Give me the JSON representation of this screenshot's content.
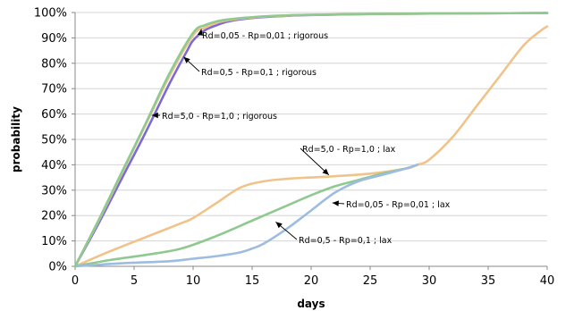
{
  "chart_data": {
    "type": "line",
    "xlabel": "days",
    "ylabel": "probability",
    "xlim": [
      0,
      40
    ],
    "ylim": [
      0,
      100
    ],
    "x_ticks": [
      "0",
      "5",
      "10",
      "15",
      "20",
      "25",
      "30",
      "35",
      "40"
    ],
    "y_ticks": [
      "0%",
      "10%",
      "20%",
      "30%",
      "40%",
      "50%",
      "60%",
      "70%",
      "80%",
      "90%",
      "100%"
    ],
    "grid": "horizontal",
    "legend": "none",
    "series": [
      {
        "name": "Rd=5,0 - Rp=1,0 ; lax",
        "color": "#f0c38a",
        "x": [
          0,
          3,
          6,
          9,
          10,
          12,
          14,
          16,
          18,
          20,
          22,
          25,
          28,
          29,
          30,
          32,
          34,
          36,
          38,
          39.5,
          40
        ],
        "y": [
          0,
          6,
          11.5,
          17,
          19,
          25,
          31,
          33.5,
          34.5,
          35,
          35.5,
          36.5,
          38.5,
          40,
          42,
          51,
          63,
          75,
          87,
          93,
          94.5
        ]
      },
      {
        "name": "Rd=0,05 - Rp=0,01 ; lax",
        "color": "#8fc98f",
        "x": [
          0,
          3,
          6,
          9,
          12,
          15,
          18,
          20,
          22,
          24,
          26,
          28,
          29
        ],
        "y": [
          0,
          2.5,
          4.5,
          7,
          12,
          18,
          24,
          28,
          31.5,
          34,
          36.5,
          38.5,
          40
        ]
      },
      {
        "name": "Rd=0,5 - Rp=0,1 ; lax",
        "color": "#9cbde0",
        "x": [
          0,
          4,
          8,
          10,
          12,
          14,
          15,
          16,
          18,
          20,
          22,
          24,
          26,
          28,
          29
        ],
        "y": [
          0,
          1.2,
          2,
          3,
          4,
          5.5,
          7,
          9,
          15,
          22,
          29,
          33.5,
          36,
          38.5,
          40
        ]
      },
      {
        "name": "Rd=5,0 - Rp=1,0 ; rigorous",
        "color": "#7b6bd6",
        "x": [
          0,
          2,
          4,
          6,
          8,
          9.5,
          10,
          11,
          12,
          13,
          14,
          16,
          18,
          20,
          25,
          30,
          35,
          40
        ],
        "y": [
          0,
          17,
          35,
          53,
          72,
          85,
          89,
          93,
          95,
          96.5,
          97.3,
          98.2,
          98.7,
          99,
          99.4,
          99.6,
          99.7,
          99.8
        ]
      },
      {
        "name": "Rd=0,5 - Rp=0,1 ; rigorous",
        "color": "#f0c38a",
        "x": [
          0,
          2,
          4,
          6,
          8,
          10,
          11,
          12,
          13,
          14,
          16,
          18,
          20,
          25,
          30,
          35,
          40
        ],
        "y": [
          0,
          18,
          37,
          56,
          75,
          91,
          94,
          96,
          97,
          97.6,
          98.4,
          98.8,
          99.1,
          99.4,
          99.6,
          99.7,
          99.8
        ]
      },
      {
        "name": "Rd=0,05 - Rp=0,01 ; rigorous",
        "color": "#8fc98f",
        "x": [
          0,
          2,
          4,
          6,
          8,
          10,
          11,
          12,
          13,
          14,
          16,
          18,
          20,
          25,
          30,
          35,
          40
        ],
        "y": [
          0,
          18.3,
          37.5,
          56.5,
          76,
          92,
          95,
          96.5,
          97.3,
          97.8,
          98.5,
          98.9,
          99.1,
          99.4,
          99.6,
          99.7,
          99.8
        ]
      }
    ],
    "annotations": [
      {
        "text": "Rd=0,05 - Rp=0,01 ; rigorous",
        "point": [
          10.7,
          93.5
        ]
      },
      {
        "text": "Rd=0,5 - Rp=0,1 ; rigorous",
        "point": [
          9.2,
          82.5
        ]
      },
      {
        "text": "Rd=5,0 - Rp=1,0 ; rigorous",
        "point": [
          6.5,
          59.5
        ]
      },
      {
        "text": "Rd=5,0 - Rp=1,0 ; lax",
        "point": [
          21.5,
          36
        ]
      },
      {
        "text": "Rd=0,05 - Rp=0,01 ; lax",
        "point": [
          21.8,
          25
        ]
      },
      {
        "text": "Rd=0,5 - Rp=0,1 ; lax",
        "point": [
          17.0,
          17.5
        ]
      }
    ]
  }
}
